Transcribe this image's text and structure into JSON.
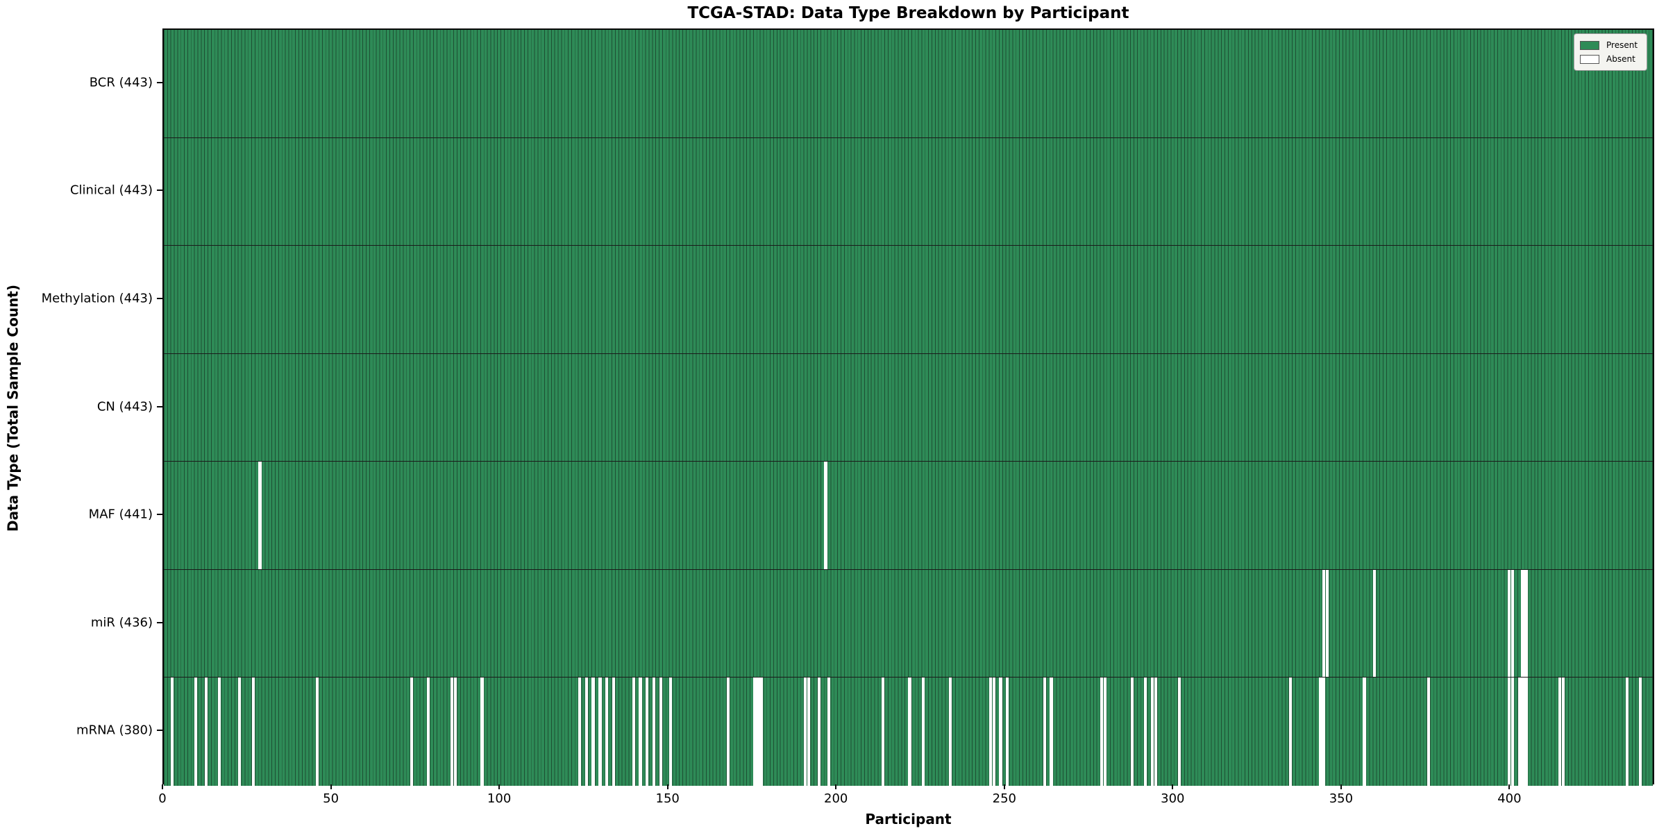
{
  "title": "TCGA-STAD: Data Type Breakdown by Participant",
  "xlabel": "Participant",
  "ylabel": "Data Type (Total Sample Count)",
  "legend": {
    "present_label": "Present",
    "absent_label": "Absent"
  },
  "colors": {
    "present": "#2e8b57",
    "bar_edge": "#1d4f33",
    "absent": "#ffffff",
    "row_divider": "#1a1a1a",
    "legend_bg": "#f4f4f0"
  },
  "chart_data": {
    "type": "heatmap",
    "title": "TCGA-STAD: Data Type Breakdown by Participant",
    "xlabel": "Participant",
    "ylabel": "Data Type (Total Sample Count)",
    "x_range": [
      0,
      443
    ],
    "x_ticks": [
      0,
      50,
      100,
      150,
      200,
      250,
      300,
      350,
      400
    ],
    "n_participants": 443,
    "grid": false,
    "legend_position": "upper right",
    "legend_entries": [
      "Present",
      "Absent"
    ],
    "rows": [
      {
        "label": "BCR (443)",
        "data_type": "BCR",
        "total": 443,
        "absent_participants": []
      },
      {
        "label": "Clinical (443)",
        "data_type": "Clinical",
        "total": 443,
        "absent_participants": []
      },
      {
        "label": "Methylation (443)",
        "data_type": "Methylation",
        "total": 443,
        "absent_participants": []
      },
      {
        "label": "CN (443)",
        "data_type": "CN",
        "total": 443,
        "absent_participants": []
      },
      {
        "label": "MAF (441)",
        "data_type": "MAF",
        "total": 441,
        "absent_participants": [
          28,
          196
        ]
      },
      {
        "label": "miR (436)",
        "data_type": "miR",
        "total": 436,
        "absent_participants": [
          344,
          345,
          359,
          399,
          400,
          403,
          404
        ]
      },
      {
        "label": "mRNA (380)",
        "data_type": "mRNA",
        "total": 380,
        "absent_participants": [
          2,
          9,
          12,
          16,
          22,
          26,
          45,
          73,
          78,
          85,
          86,
          94,
          123,
          125,
          127,
          129,
          131,
          133,
          139,
          141,
          143,
          145,
          147,
          150,
          167,
          175,
          176,
          177,
          190,
          191,
          194,
          197,
          213,
          221,
          225,
          233,
          245,
          246,
          248,
          250,
          261,
          263,
          278,
          279,
          287,
          291,
          293,
          294,
          301,
          334,
          343,
          344,
          356,
          375,
          399,
          400,
          402,
          403,
          404,
          414,
          415,
          434,
          438
        ]
      }
    ]
  }
}
